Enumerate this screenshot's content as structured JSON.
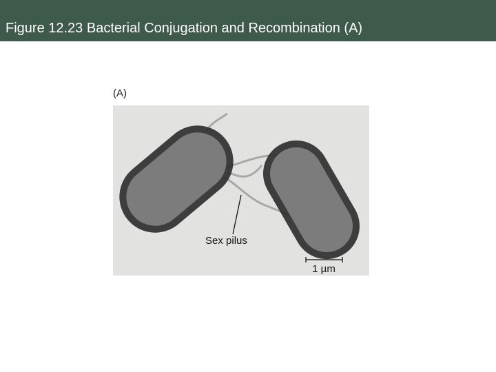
{
  "header": {
    "title": "Figure 12.23 Bacterial Conjugation and Recombination (A)"
  },
  "figure": {
    "panel_label": "(A)",
    "annotation": "Sex pilus",
    "scale_bar": "1 µm"
  }
}
